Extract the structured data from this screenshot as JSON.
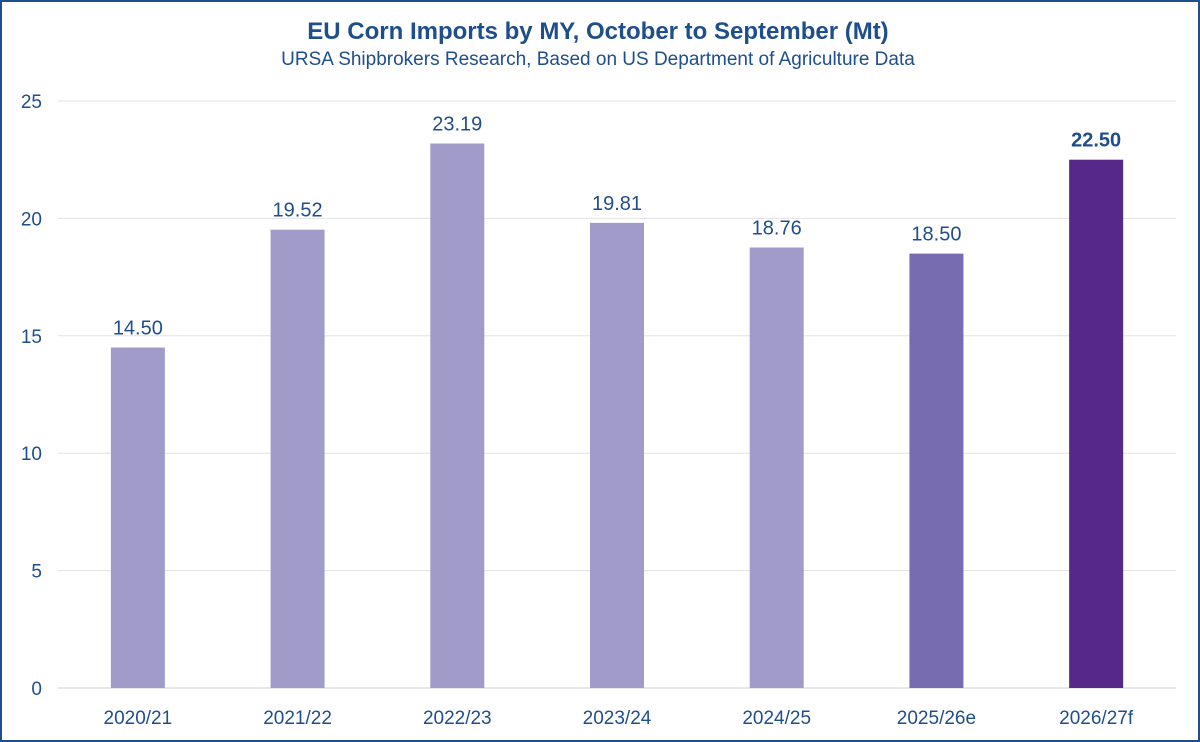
{
  "chart_data": {
    "type": "bar",
    "title": "EU Corn Imports by MY, October to September (Mt)",
    "subtitle": "URSA Shipbrokers Research, Based on US Department of Agriculture Data",
    "categories": [
      "2020/21",
      "2021/22",
      "2022/23",
      "2023/24",
      "2024/25",
      "2025/26e",
      "2026/27f"
    ],
    "values": [
      14.5,
      19.52,
      23.19,
      19.81,
      18.76,
      18.5,
      22.5
    ],
    "data_labels": [
      "14.50",
      "19.52",
      "23.19",
      "19.81",
      "18.76",
      "18.50",
      "22.50"
    ],
    "bar_colors": [
      "#a09bc9",
      "#a09bc9",
      "#a09bc9",
      "#a09bc9",
      "#a09bc9",
      "#776caf",
      "#56288a"
    ],
    "bold_labels": [
      false,
      false,
      false,
      false,
      false,
      false,
      true
    ],
    "yticks": [
      0,
      5,
      10,
      15,
      20,
      25
    ],
    "ylim": [
      0,
      25
    ],
    "xlabel": "",
    "ylabel": "",
    "grid": true,
    "legend": "none",
    "colors": {
      "text": "#1f4e8c",
      "grid": "#e3e3e3",
      "frame": "#1f4e8c"
    }
  }
}
